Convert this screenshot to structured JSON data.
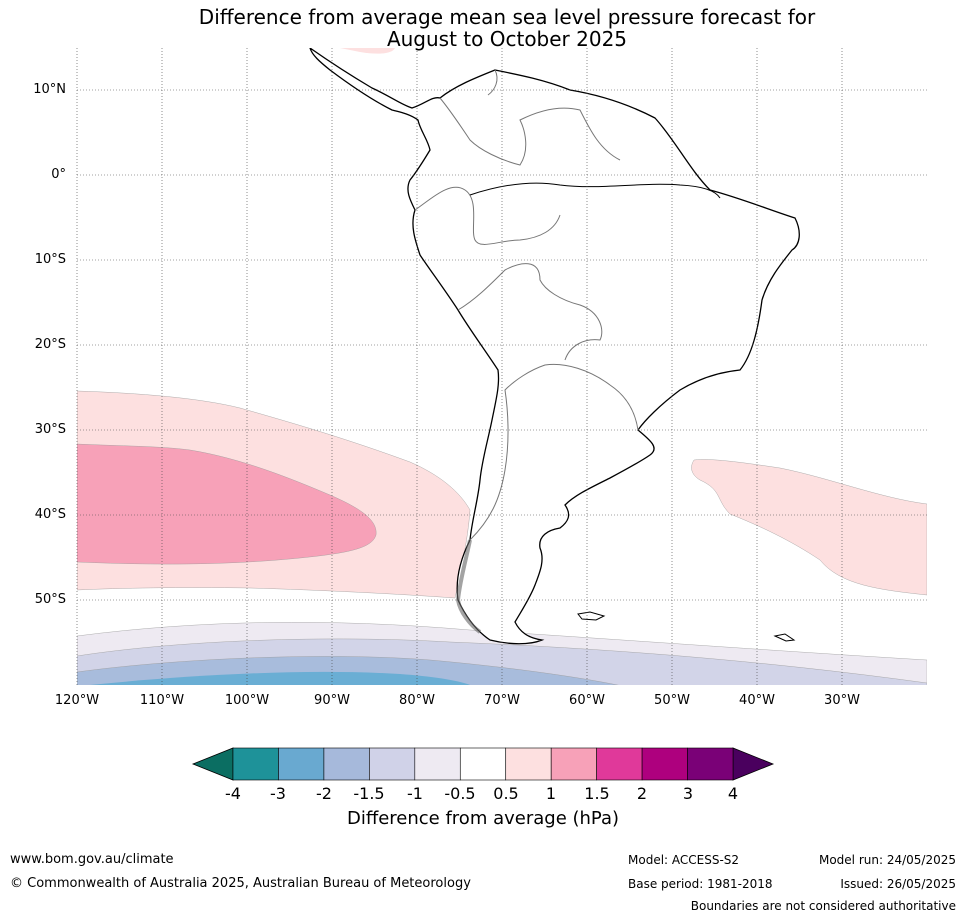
{
  "title": {
    "line1": "Difference from average mean sea level pressure forecast for",
    "line2": "August to October 2025"
  },
  "map": {
    "lat_labels": [
      "10°N",
      "0°",
      "10°S",
      "20°S",
      "30°S",
      "40°S",
      "50°S"
    ],
    "lon_labels": [
      "120°W",
      "110°W",
      "100°W",
      "90°W",
      "80°W",
      "70°W",
      "60°W",
      "50°W",
      "40°W",
      "30°W"
    ],
    "extent": {
      "lon": [
        -120,
        -20
      ],
      "lat": [
        -60,
        15
      ]
    },
    "anomaly_regions": [
      {
        "name": "south-pacific-positive",
        "level": "0.5 to 1",
        "color": "#fde0e0"
      },
      {
        "name": "south-pacific-core",
        "level": "1 to 1.5",
        "color": "#f7a1b8"
      },
      {
        "name": "south-atlantic-positive",
        "level": "0.5 to 1",
        "color": "#fde0e0"
      },
      {
        "name": "southern-ocean-band",
        "level": "-0.5 to -1",
        "color": "#eeeaf2"
      },
      {
        "name": "southern-ocean-band",
        "level": "-1 to -1.5",
        "color": "#d2d4e8"
      },
      {
        "name": "southern-ocean-band",
        "level": "-1.5 to -2",
        "color": "#a8bcdc"
      },
      {
        "name": "southern-ocean-band",
        "level": "-2 to -3",
        "color": "#6aaed4"
      }
    ]
  },
  "colorbar": {
    "ticks": [
      "-4",
      "-3",
      "-2",
      "-1.5",
      "-1",
      "-0.5",
      "0.5",
      "1",
      "1.5",
      "2",
      "3",
      "4"
    ],
    "colors": [
      "#1e9299",
      "#69a9d0",
      "#a6b9db",
      "#d0d2e8",
      "#eeeaf2",
      "#ffffff",
      "#fde0e0",
      "#f7a1b8",
      "#e0399a",
      "#ae007e",
      "#7a0177"
    ],
    "under_color": "#0b6e62",
    "over_color": "#4a005e",
    "label": "Difference from average (hPa)"
  },
  "footer": {
    "website": "www.bom.gov.au/climate",
    "copyright": "© Commonwealth of Australia 2025, Australian Bureau of Meteorology",
    "model": "Model: ACCESS-S2",
    "base_period": "Base period: 1981-2018",
    "model_run": "Model run: 24/05/2025",
    "issued": "Issued: 26/05/2025",
    "disclaimer": "Boundaries are not considered authoritative"
  }
}
